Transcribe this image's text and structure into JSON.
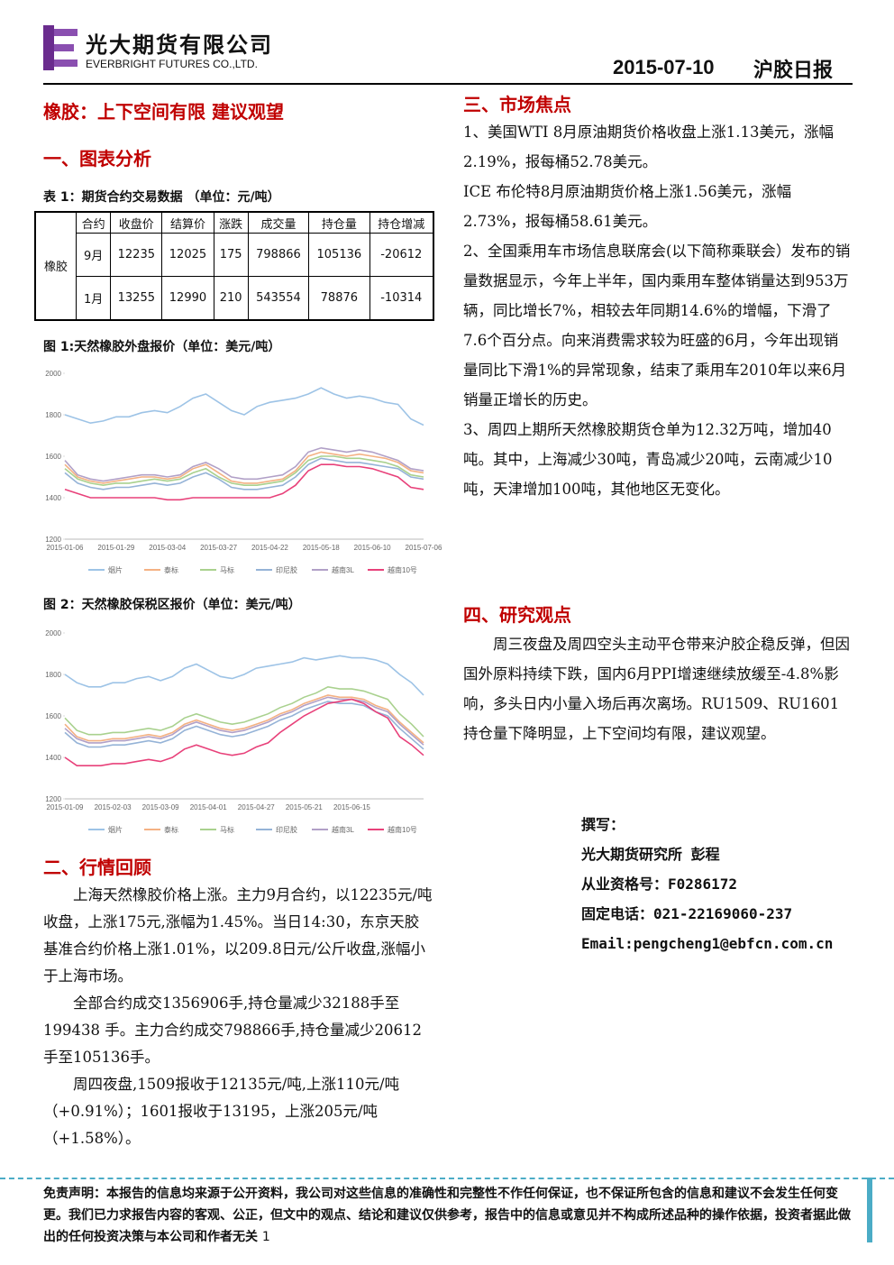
{
  "header": {
    "company_cn": "光大期货有限公司",
    "company_en": "EVERBRIGHT FUTURES CO.,LTD.",
    "date": "2015-07-10",
    "report_name": "沪胶日报"
  },
  "headline": "橡胶：上下空间有限 建议观望",
  "section1_title": "一、图表分析",
  "table1": {
    "caption": "表 1：期货合约交易数据 （单位：元/吨）",
    "columns": [
      "合约",
      "收盘价",
      "结算价",
      "涨跌",
      "成交量",
      "持仓量",
      "持仓增减"
    ],
    "group": "橡胶",
    "rows": [
      [
        "9月",
        12235,
        12025,
        175,
        798866,
        105136,
        -20612
      ],
      [
        "1月",
        13255,
        12990,
        210,
        543554,
        78876,
        -10314
      ]
    ]
  },
  "chart_data": [
    {
      "type": "line",
      "title": "图 1:天然橡胶外盘报价（单位：美元/吨）",
      "categories": [
        "2015-01-06",
        null,
        null,
        null,
        "2015-01-29",
        null,
        null,
        null,
        "2015-03-04",
        null,
        null,
        null,
        "2015-03-27",
        null,
        null,
        null,
        "2015-04-22",
        null,
        null,
        null,
        "2015-05-18",
        null,
        null,
        null,
        "2015-06-10",
        null,
        null,
        null,
        "2015-07-06"
      ],
      "ylim": [
        1200,
        2000
      ],
      "yticks": [
        1200,
        1400,
        1600,
        1800,
        2000
      ],
      "grid": false,
      "series": [
        {
          "name": "烟片",
          "color": "#9dc3e6",
          "values": [
            1800,
            1780,
            1760,
            1770,
            1790,
            1790,
            1810,
            1820,
            1810,
            1840,
            1880,
            1900,
            1860,
            1820,
            1800,
            1840,
            1860,
            1870,
            1880,
            1900,
            1930,
            1900,
            1880,
            1890,
            1880,
            1860,
            1850,
            1780,
            1750
          ]
        },
        {
          "name": "泰标",
          "color": "#f4b183",
          "values": [
            1560,
            1500,
            1480,
            1470,
            1480,
            1490,
            1500,
            1500,
            1490,
            1500,
            1540,
            1560,
            1520,
            1480,
            1470,
            1470,
            1480,
            1490,
            1530,
            1600,
            1620,
            1610,
            1600,
            1610,
            1600,
            1590,
            1570,
            1530,
            1520
          ]
        },
        {
          "name": "马标",
          "color": "#a9d18e",
          "values": [
            1540,
            1490,
            1470,
            1460,
            1470,
            1470,
            1480,
            1490,
            1480,
            1490,
            1520,
            1540,
            1500,
            1470,
            1460,
            1460,
            1470,
            1480,
            1520,
            1580,
            1600,
            1600,
            1590,
            1590,
            1580,
            1570,
            1550,
            1510,
            1500
          ]
        },
        {
          "name": "印尼胶",
          "color": "#95b3d7",
          "values": [
            1520,
            1470,
            1450,
            1440,
            1450,
            1450,
            1460,
            1470,
            1460,
            1470,
            1500,
            1520,
            1490,
            1450,
            1440,
            1440,
            1450,
            1460,
            1500,
            1560,
            1590,
            1580,
            1570,
            1570,
            1560,
            1550,
            1540,
            1500,
            1490
          ]
        },
        {
          "name": "越南3L",
          "color": "#b1a0c7",
          "values": [
            1580,
            1510,
            1490,
            1480,
            1490,
            1500,
            1510,
            1510,
            1500,
            1510,
            1550,
            1570,
            1540,
            1500,
            1490,
            1490,
            1500,
            1510,
            1550,
            1620,
            1640,
            1630,
            1620,
            1630,
            1620,
            1600,
            1580,
            1540,
            1530
          ]
        },
        {
          "name": "越南10号",
          "color": "#e8417a",
          "values": [
            1440,
            1420,
            1400,
            1400,
            1400,
            1400,
            1400,
            1400,
            1390,
            1390,
            1400,
            1400,
            1400,
            1400,
            1400,
            1400,
            1400,
            1420,
            1460,
            1530,
            1560,
            1560,
            1550,
            1550,
            1540,
            1520,
            1500,
            1450,
            1440
          ]
        }
      ]
    },
    {
      "type": "line",
      "title": "图 2：天然橡胶保税区报价（单位：美元/吨）",
      "categories": [
        "2015-01-09",
        null,
        null,
        null,
        "2015-02-03",
        null,
        null,
        null,
        "2015-03-09",
        null,
        null,
        null,
        "2015-04-01",
        null,
        null,
        null,
        "2015-04-27",
        null,
        null,
        null,
        "2015-05-21",
        null,
        null,
        null,
        "2015-06-15",
        null,
        null,
        null,
        null,
        null,
        null
      ],
      "ylim": [
        1200,
        2000
      ],
      "yticks": [
        1200,
        1400,
        1600,
        1800,
        2000
      ],
      "grid": false,
      "series": [
        {
          "name": "烟片",
          "color": "#9dc3e6",
          "values": [
            1800,
            1760,
            1740,
            1740,
            1760,
            1760,
            1780,
            1790,
            1770,
            1790,
            1830,
            1850,
            1820,
            1790,
            1780,
            1800,
            1830,
            1840,
            1850,
            1860,
            1880,
            1870,
            1880,
            1890,
            1880,
            1880,
            1870,
            1850,
            1800,
            1760,
            1700
          ]
        },
        {
          "name": "泰标",
          "color": "#f4b183",
          "values": [
            1560,
            1500,
            1480,
            1480,
            1490,
            1490,
            1500,
            1510,
            1500,
            1520,
            1560,
            1580,
            1560,
            1540,
            1530,
            1540,
            1560,
            1580,
            1610,
            1630,
            1660,
            1680,
            1700,
            1690,
            1690,
            1680,
            1650,
            1630,
            1570,
            1520,
            1470
          ]
        },
        {
          "name": "马标",
          "color": "#a9d18e",
          "values": [
            1590,
            1530,
            1510,
            1510,
            1520,
            1520,
            1530,
            1540,
            1530,
            1550,
            1590,
            1610,
            1590,
            1570,
            1560,
            1570,
            1590,
            1610,
            1640,
            1660,
            1690,
            1710,
            1740,
            1730,
            1730,
            1720,
            1700,
            1680,
            1610,
            1560,
            1500
          ]
        },
        {
          "name": "印尼胶",
          "color": "#95b3d7",
          "values": [
            1520,
            1470,
            1450,
            1450,
            1460,
            1460,
            1470,
            1480,
            1470,
            1490,
            1530,
            1550,
            1530,
            1510,
            1500,
            1510,
            1530,
            1550,
            1580,
            1600,
            1630,
            1650,
            1670,
            1660,
            1660,
            1650,
            1620,
            1600,
            1540,
            1490,
            1440
          ]
        },
        {
          "name": "越南3L",
          "color": "#b1a0c7",
          "values": [
            1540,
            1490,
            1470,
            1470,
            1480,
            1480,
            1490,
            1500,
            1490,
            1510,
            1550,
            1570,
            1550,
            1530,
            1520,
            1530,
            1550,
            1570,
            1600,
            1620,
            1650,
            1670,
            1690,
            1680,
            1680,
            1670,
            1640,
            1620,
            1560,
            1510,
            1460
          ]
        },
        {
          "name": "越南10号",
          "color": "#e8417a",
          "values": [
            1400,
            1360,
            1360,
            1360,
            1370,
            1370,
            1380,
            1390,
            1380,
            1400,
            1440,
            1460,
            1440,
            1420,
            1410,
            1420,
            1450,
            1470,
            1520,
            1560,
            1600,
            1630,
            1660,
            1670,
            1680,
            1660,
            1620,
            1590,
            1500,
            1460,
            1410
          ]
        }
      ]
    }
  ],
  "section2": {
    "title": "二、行情回顾",
    "paragraphs": [
      "上海天然橡胶价格上涨。主力9月合约，以12235元/吨收盘，上涨175元,涨幅为1.45%。当日14:30，东京天胶基准合约价格上涨1.01%，以209.8日元/公斤收盘,涨幅小于上海市场。",
      "全部合约成交1356906手,持仓量减少32188手至199438 手。主力合约成交798866手,持仓量减少20612手至105136手。",
      "周四夜盘,1509报收于12135元/吨,上涨110元/吨（+0.91%）；1601报收于13195，上涨205元/吨（+1.58%）。"
    ]
  },
  "section3": {
    "title": "三、市场焦点",
    "paragraphs": [
      "1、美国WTI 8月原油期货价格收盘上涨1.13美元，涨幅2.19%，报每桶52.78美元。",
      "ICE 布伦特8月原油期货价格上涨1.56美元，涨幅2.73%，报每桶58.61美元。",
      "2、全国乘用车市场信息联席会(以下简称乘联会）发布的销量数据显示，今年上半年，国内乘用车整体销量达到953万辆，同比增长7%，相较去年同期14.6%的增幅，下滑了7.6个百分点。向来消费需求较为旺盛的6月，今年出现销量同比下滑1%的异常现象，结束了乘用车2010年以来6月销量正增长的历史。",
      "3、周四上期所天然橡胶期货仓单为12.32万吨，增加40吨。其中，上海减少30吨，青岛减少20吨，云南减少10吨，天津增加100吨，其他地区无变化。"
    ]
  },
  "section4": {
    "title": "四、研究观点",
    "paragraph": "周三夜盘及周四空头主动平仓带来沪胶企稳反弹，但因国外原料持续下跌，国内6月PPI增速继续放缓至-4.8%影响，多头日内小量入场后再次离场。RU1509、RU1601持仓量下降明显，上下空间均有限，建议观望。"
  },
  "author": [
    "撰写：",
    "光大期货研究所 彭程",
    "从业资格号：F0286172",
    "固定电话：021-22169060-237",
    "Email:pengcheng1@ebfcn.com.cn"
  ],
  "footer": {
    "disclaimer": "免责声明：本报告的信息均来源于公开资料，我公司对这些信息的准确性和完整性不作任何保证，也不保证所包含的信息和建议不会发生任何变更。我们已力求报告内容的客观、公正，但文中的观点、结论和建议仅供参考，报告中的信息或意见并不构成所述品种的操作依据，投资者据此做出的任何投资决策与本公司和作者无关",
    "page": "1"
  }
}
